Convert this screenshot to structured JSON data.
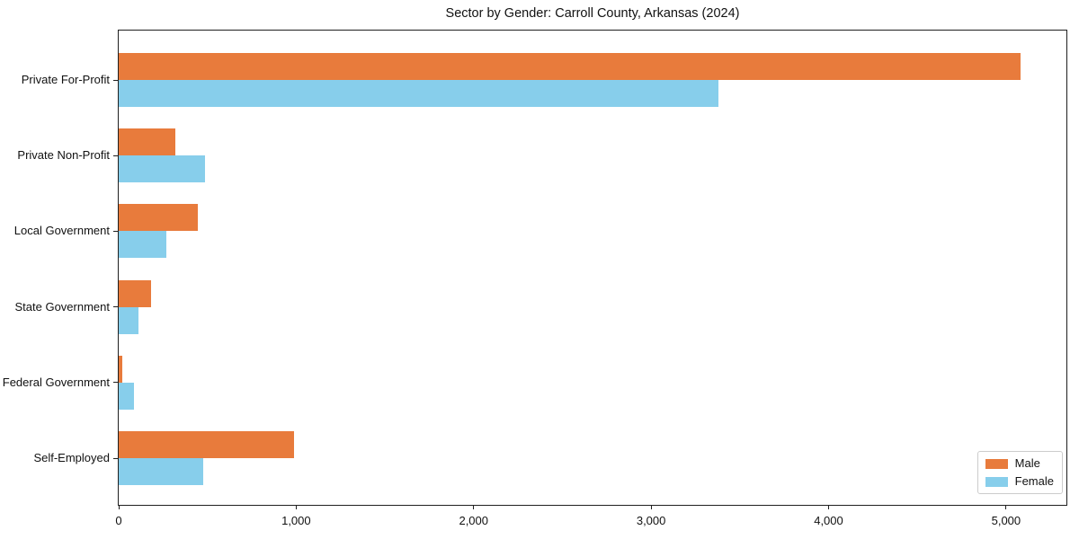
{
  "chart_data": {
    "type": "bar",
    "orientation": "horizontal",
    "title": "Sector by Gender: Carroll County, Arkansas (2024)",
    "categories": [
      "Private For-Profit",
      "Private Non-Profit",
      "Local Government",
      "State Government",
      "Federal Government",
      "Self-Employed"
    ],
    "series": [
      {
        "name": "Male",
        "color": "#e87b3c",
        "values": [
          5080,
          320,
          445,
          180,
          20,
          990
        ]
      },
      {
        "name": "Female",
        "color": "#87ceeb",
        "values": [
          3380,
          485,
          270,
          110,
          85,
          475
        ]
      }
    ],
    "xlabel": "",
    "ylabel": "",
    "x_ticks": [
      0,
      1000,
      2000,
      3000,
      4000,
      5000
    ],
    "x_tick_labels": [
      "0",
      "1,000",
      "2,000",
      "3,000",
      "4,000",
      "5,000"
    ],
    "xlim": [
      0,
      5340
    ],
    "grid": false,
    "legend_position": "lower right",
    "frame": true
  }
}
